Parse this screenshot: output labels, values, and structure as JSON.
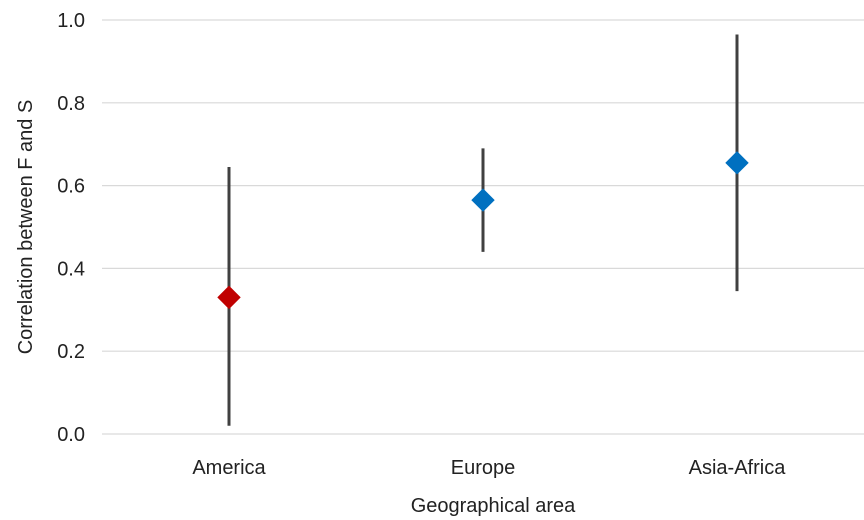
{
  "chart_data": {
    "type": "scatter",
    "title": "",
    "xlabel": "Geographical area",
    "ylabel": "Correlation between  F and S",
    "categories": [
      "America",
      "Europe",
      "Asia-Africa"
    ],
    "points": [
      {
        "category": "America",
        "value": 0.33,
        "lower": 0.02,
        "upper": 0.645,
        "color": "#c00000"
      },
      {
        "category": "Europe",
        "value": 0.565,
        "lower": 0.44,
        "upper": 0.69,
        "color": "#0070c0"
      },
      {
        "category": "Asia-Africa",
        "value": 0.655,
        "lower": 0.345,
        "upper": 0.965,
        "color": "#0070c0"
      }
    ],
    "ylim": [
      0,
      1
    ],
    "yticks": [
      "0.0",
      "0.2",
      "0.4",
      "0.6",
      "0.8",
      "1.0"
    ],
    "ytick_values": [
      0,
      0.2,
      0.4,
      0.6,
      0.8,
      1.0
    ],
    "grid": "horizontal",
    "marker": "diamond",
    "legend": "none"
  }
}
